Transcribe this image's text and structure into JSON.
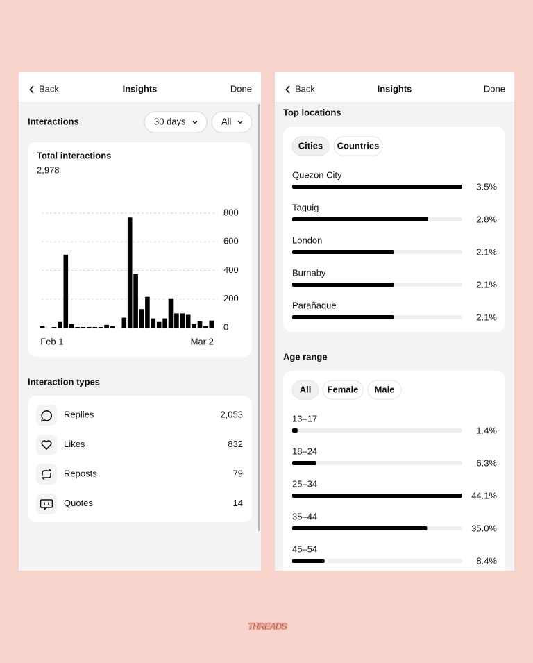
{
  "left": {
    "nav": {
      "back": "Back",
      "title": "Insights",
      "done": "Done"
    },
    "section_title": "Interactions",
    "filters": [
      "30 days",
      "All"
    ],
    "total_label": "Total interactions",
    "total": "2,978",
    "chart": {
      "type": "bar",
      "categories": [
        "Feb 1",
        null,
        null,
        null,
        null,
        null,
        null,
        null,
        null,
        null,
        null,
        null,
        null,
        null,
        null,
        null,
        null,
        null,
        null,
        null,
        null,
        null,
        null,
        null,
        null,
        null,
        null,
        null,
        null,
        "Mar 2"
      ],
      "values": [
        10,
        0,
        5,
        40,
        510,
        25,
        5,
        5,
        5,
        5,
        5,
        20,
        10,
        0,
        70,
        770,
        375,
        130,
        215,
        65,
        40,
        65,
        205,
        100,
        100,
        90,
        25,
        45,
        10,
        50
      ],
      "color": "#000000",
      "ylim": [
        0,
        800
      ],
      "yticks": [
        0,
        200,
        400,
        600,
        800
      ],
      "grid": true
    },
    "types_title": "Interaction types",
    "types": [
      {
        "label": "Replies",
        "value": "2,053"
      },
      {
        "label": "Likes",
        "value": "832"
      },
      {
        "label": "Reposts",
        "value": "79"
      },
      {
        "label": "Quotes",
        "value": "14"
      }
    ]
  },
  "right": {
    "nav": {
      "back": "Back",
      "title": "Insights",
      "done": "Done"
    },
    "locations_title": "Top locations",
    "location_tabs": [
      "Cities",
      "Countries"
    ],
    "locations": [
      {
        "name": "Quezon City",
        "value": 3.5,
        "value_label": "3.5%"
      },
      {
        "name": "Taguig",
        "value": 2.8,
        "value_label": "2.8%"
      },
      {
        "name": "London",
        "value": 2.1,
        "value_label": "2.1%"
      },
      {
        "name": "Burnaby",
        "value": 2.1,
        "value_label": "2.1%"
      },
      {
        "name": "Parañaque",
        "value": 2.1,
        "value_label": "2.1%"
      }
    ],
    "age_title": "Age range",
    "age_tabs": [
      "All",
      "Female",
      "Male"
    ],
    "ages": [
      {
        "name": "13–17",
        "value": 1.4,
        "value_label": "1.4%"
      },
      {
        "name": "18–24",
        "value": 6.3,
        "value_label": "6.3%"
      },
      {
        "name": "25–34",
        "value": 44.1,
        "value_label": "44.1%"
      },
      {
        "name": "35–44",
        "value": 35.0,
        "value_label": "35.0%"
      },
      {
        "name": "45–54",
        "value": 8.4,
        "value_label": "8.4%"
      }
    ]
  },
  "brand": "THREADS"
}
